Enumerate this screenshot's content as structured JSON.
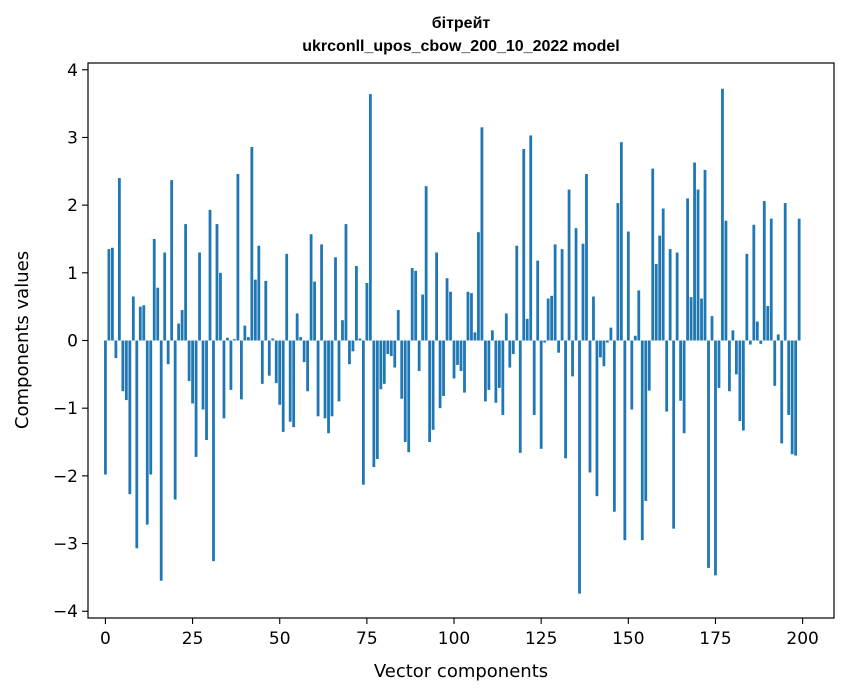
{
  "chart_data": {
    "type": "bar",
    "title": "бітрейт",
    "subtitle": "ukrconll_upos_cbow_200_10_2022 model",
    "xlabel": "Vector components",
    "ylabel": "Components values",
    "xlim": [
      -5,
      209
    ],
    "ylim": [
      -4.1,
      4.1
    ],
    "xticks": [
      0,
      25,
      50,
      75,
      100,
      125,
      150,
      175,
      200
    ],
    "yticks": [
      -4,
      -3,
      -2,
      -1,
      0,
      1,
      2,
      3,
      4
    ],
    "grid": false,
    "bar_color": "#1f77b4",
    "x": [
      0,
      1,
      2,
      3,
      4,
      5,
      6,
      7,
      8,
      9,
      10,
      11,
      12,
      13,
      14,
      15,
      16,
      17,
      18,
      19,
      20,
      21,
      22,
      23,
      24,
      25,
      26,
      27,
      28,
      29,
      30,
      31,
      32,
      33,
      34,
      35,
      36,
      37,
      38,
      39,
      40,
      41,
      42,
      43,
      44,
      45,
      46,
      47,
      48,
      49,
      50,
      51,
      52,
      53,
      54,
      55,
      56,
      57,
      58,
      59,
      60,
      61,
      62,
      63,
      64,
      65,
      66,
      67,
      68,
      69,
      70,
      71,
      72,
      73,
      74,
      75,
      76,
      77,
      78,
      79,
      80,
      81,
      82,
      83,
      84,
      85,
      86,
      87,
      88,
      89,
      90,
      91,
      92,
      93,
      94,
      95,
      96,
      97,
      98,
      99,
      100,
      101,
      102,
      103,
      104,
      105,
      106,
      107,
      108,
      109,
      110,
      111,
      112,
      113,
      114,
      115,
      116,
      117,
      118,
      119,
      120,
      121,
      122,
      123,
      124,
      125,
      126,
      127,
      128,
      129,
      130,
      131,
      132,
      133,
      134,
      135,
      136,
      137,
      138,
      139,
      140,
      141,
      142,
      143,
      144,
      145,
      146,
      147,
      148,
      149,
      150,
      151,
      152,
      153,
      154,
      155,
      156,
      157,
      158,
      159,
      160,
      161,
      162,
      163,
      164,
      165,
      166,
      167,
      168,
      169,
      170,
      171,
      172,
      173,
      174,
      175,
      176,
      177,
      178,
      179,
      180,
      181,
      182,
      183,
      184,
      185,
      186,
      187,
      188,
      189,
      190,
      191,
      192,
      193,
      194,
      195,
      196,
      197,
      198,
      199
    ],
    "values": [
      -1.98,
      1.35,
      1.37,
      -0.26,
      2.4,
      -0.75,
      -0.88,
      -2.27,
      0.65,
      -3.07,
      0.5,
      0.52,
      -2.72,
      -1.98,
      1.5,
      0.78,
      -3.55,
      1.3,
      -0.35,
      2.37,
      -2.35,
      0.25,
      0.45,
      1.72,
      -0.6,
      -0.93,
      -1.72,
      1.3,
      -1.02,
      -1.47,
      1.93,
      -3.26,
      1.72,
      1.0,
      -1.15,
      0.04,
      -0.73,
      0.02,
      2.46,
      -0.87,
      0.22,
      0.05,
      2.86,
      0.9,
      1.4,
      -0.64,
      0.88,
      -0.52,
      0.03,
      -0.63,
      -0.95,
      -1.35,
      1.28,
      -1.2,
      -1.28,
      0.4,
      0.05,
      -0.32,
      -0.75,
      1.57,
      0.87,
      -1.12,
      1.42,
      -1.15,
      -1.37,
      -1.12,
      1.23,
      -0.9,
      0.3,
      1.72,
      -0.35,
      -0.16,
      1.1,
      0.03,
      -2.13,
      0.85,
      3.64,
      -1.87,
      -1.75,
      -0.72,
      -0.64,
      -0.2,
      -0.23,
      -0.4,
      0.45,
      -0.86,
      -1.5,
      -1.65,
      1.07,
      1.03,
      -0.45,
      0.68,
      2.28,
      -1.5,
      -1.32,
      1.3,
      -1.0,
      -0.82,
      0.92,
      0.72,
      -0.56,
      -0.36,
      -0.45,
      -0.77,
      0.72,
      0.7,
      0.12,
      1.6,
      3.15,
      -0.9,
      -0.73,
      0.15,
      -0.92,
      -0.7,
      -1.1,
      0.4,
      -0.4,
      -0.2,
      1.4,
      -1.66,
      2.83,
      0.32,
      3.03,
      -1.1,
      1.18,
      -1.6,
      -0.03,
      0.62,
      0.66,
      1.42,
      -0.18,
      1.35,
      -1.74,
      2.23,
      -0.53,
      1.66,
      -3.74,
      1.43,
      2.46,
      -1.95,
      0.65,
      -2.3,
      -0.25,
      -0.38,
      -0.03,
      0.19,
      -2.53,
      2.03,
      2.93,
      -2.95,
      1.61,
      -1.02,
      0.07,
      0.74,
      -2.95,
      -2.37,
      -0.74,
      2.54,
      1.13,
      1.55,
      1.95,
      -1.05,
      1.35,
      -2.78,
      1.3,
      -0.89,
      -1.37,
      2.1,
      0.64,
      2.63,
      2.23,
      0.62,
      2.52,
      -3.36,
      0.36,
      -3.47,
      -0.7,
      3.72,
      1.77,
      -0.75,
      0.15,
      -0.5,
      -1.19,
      -1.33,
      1.28,
      -0.06,
      1.71,
      0.28,
      -0.05,
      2.06,
      0.51,
      1.8,
      -0.67,
      0.09,
      -1.52,
      2.03,
      -1.1,
      -1.68,
      -1.7,
      1.8
    ]
  }
}
